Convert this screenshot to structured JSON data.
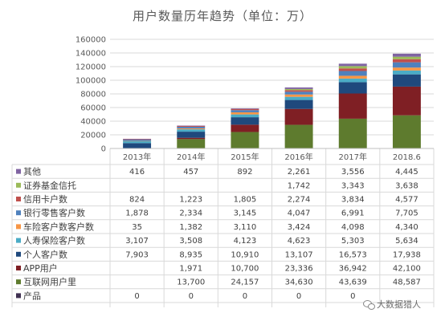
{
  "chart_data": {
    "type": "bar",
    "stacked": true,
    "title": "用户数量历年趋势（单位：万）",
    "categories": [
      "2013年",
      "2014年",
      "2015年",
      "2016年",
      "2017年",
      "2018.6"
    ],
    "ylim": [
      0,
      160000
    ],
    "yticks": [
      "0",
      "20000",
      "40000",
      "60000",
      "80000",
      "100000",
      "120000",
      "140000",
      "160000"
    ],
    "ytick_values": [
      0,
      20000,
      40000,
      60000,
      80000,
      100000,
      120000,
      140000,
      160000
    ],
    "grid": true,
    "legend": "data-table",
    "series": [
      {
        "name": "其他",
        "color": "#8064a2",
        "values": [
          416,
          457,
          892,
          2261,
          3556,
          4445
        ],
        "labels": [
          "416",
          "457",
          "892",
          "2,261",
          "3,556",
          "4,445"
        ]
      },
      {
        "name": "证券基金信托",
        "color": "#9bbb59",
        "values": [
          null,
          null,
          null,
          1742,
          3343,
          3638
        ],
        "labels": [
          "",
          "",
          "",
          "1,742",
          "3,343",
          "3,638"
        ]
      },
      {
        "name": "信用卡户数",
        "color": "#c0504d",
        "values": [
          824,
          1223,
          1805,
          2274,
          3834,
          4577
        ],
        "labels": [
          "824",
          "1,223",
          "1,805",
          "2,274",
          "3,834",
          "4,577"
        ]
      },
      {
        "name": "银行零售客户数",
        "color": "#4f81bd",
        "values": [
          1878,
          2334,
          3145,
          4047,
          6991,
          7705
        ],
        "labels": [
          "1,878",
          "2,334",
          "3,145",
          "4,047",
          "6,991",
          "7,705"
        ]
      },
      {
        "name": "车险客户数客户数",
        "color": "#f79646",
        "values": [
          35,
          1382,
          3110,
          3424,
          4098,
          4340
        ],
        "labels": [
          "35",
          "1,382",
          "3,110",
          "3,424",
          "4,098",
          "4,340"
        ]
      },
      {
        "name": "人寿保险客户数",
        "color": "#4bacc6",
        "values": [
          3107,
          3508,
          4123,
          4623,
          5303,
          5634
        ],
        "labels": [
          "3,107",
          "3,508",
          "4,123",
          "4,623",
          "5,303",
          "5,634"
        ]
      },
      {
        "name": "个人客户数",
        "color": "#1f497d",
        "values": [
          7903,
          8935,
          10910,
          13107,
          16573,
          17938
        ],
        "labels": [
          "7,903",
          "8,935",
          "10,910",
          "13,107",
          "16,573",
          "17,938"
        ]
      },
      {
        "name": "APP用户",
        "color": "#7f1f24",
        "values": [
          null,
          1971,
          10700,
          23336,
          36942,
          42100
        ],
        "labels": [
          "",
          "1,971",
          "10,700",
          "23,336",
          "36,942",
          "42,100"
        ]
      },
      {
        "name": "互联网用户里",
        "color": "#5e7b2e",
        "values": [
          null,
          13700,
          24157,
          34630,
          43639,
          48587
        ],
        "labels": [
          "",
          "13,700",
          "24,157",
          "34,630",
          "43,639",
          "48,587"
        ]
      },
      {
        "name": "产品",
        "color": "#403152",
        "values": [
          0,
          0,
          0,
          0,
          0,
          null
        ],
        "labels": [
          "0",
          "0",
          "0",
          "0",
          "0",
          ""
        ]
      }
    ]
  },
  "watermark": {
    "text": "大数据猎人",
    "icon": "wechat-icon"
  }
}
